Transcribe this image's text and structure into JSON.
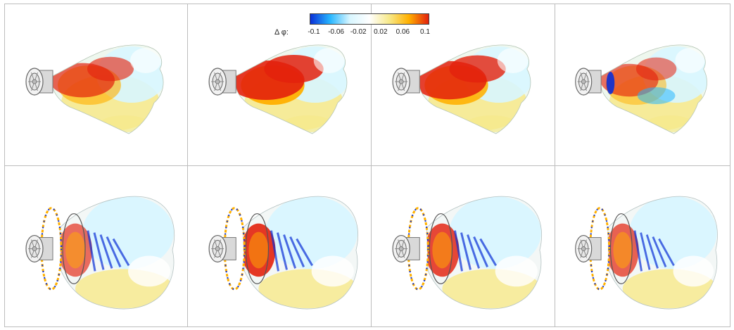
{
  "colorbar": {
    "label": "Δ φ:",
    "ticks": [
      "-0.1",
      "-0.06",
      "-0.02",
      "0.02",
      "0.06",
      "0.1"
    ],
    "range": [
      -0.1,
      0.1
    ],
    "colors": [
      "#0a2fd6",
      "#27b6ff",
      "#d8f6ff",
      "#ffffff",
      "#f7e98a",
      "#ffb000",
      "#e3210d"
    ]
  },
  "panels": [
    {
      "row": 1,
      "col": 1,
      "name": "panel-row1-col1",
      "view": "side-flame"
    },
    {
      "row": 1,
      "col": 2,
      "name": "panel-row1-col2",
      "view": "side-flame"
    },
    {
      "row": 1,
      "col": 3,
      "name": "panel-row1-col3",
      "view": "side-flame"
    },
    {
      "row": 1,
      "col": 4,
      "name": "panel-row1-col4",
      "view": "side-flame"
    },
    {
      "row": 2,
      "col": 1,
      "name": "panel-row2-col1",
      "view": "bulb-flame"
    },
    {
      "row": 2,
      "col": 2,
      "name": "panel-row2-col2",
      "view": "bulb-flame"
    },
    {
      "row": 2,
      "col": 3,
      "name": "panel-row2-col3",
      "view": "bulb-flame"
    },
    {
      "row": 2,
      "col": 4,
      "name": "panel-row2-col4",
      "view": "bulb-flame"
    }
  ]
}
